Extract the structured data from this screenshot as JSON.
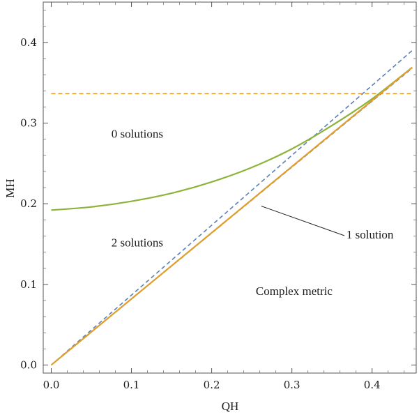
{
  "chart_data": {
    "type": "line",
    "title": "",
    "xlabel": "QH",
    "ylabel": "MH",
    "xlim": [
      -0.01,
      0.455
    ],
    "ylim": [
      -0.01,
      0.45
    ],
    "xticks": [
      "0.0",
      "0.1",
      "0.2",
      "0.3",
      "0.4"
    ],
    "yticks": [
      "0.0",
      "0.1",
      "0.2",
      "0.3",
      "0.4"
    ],
    "xtick_values": [
      0.0,
      0.1,
      0.2,
      0.3,
      0.4
    ],
    "ytick_values": [
      0.0,
      0.1,
      0.2,
      0.3,
      0.4
    ],
    "grid": false,
    "series": [
      {
        "name": "upper bound curve",
        "color": "#8db33a",
        "style": "solid",
        "x": [
          0.0,
          0.05,
          0.1,
          0.15,
          0.2,
          0.25,
          0.3,
          0.35,
          0.4,
          0.45
        ],
        "y": [
          0.192,
          0.196,
          0.203,
          0.213,
          0.227,
          0.245,
          0.268,
          0.297,
          0.33,
          0.369
        ]
      },
      {
        "name": "extremal line",
        "color": "#e09e2a",
        "style": "solid",
        "x": [
          0.0,
          0.45
        ],
        "y": [
          0.0,
          0.369
        ]
      },
      {
        "name": "horizontal asymptote",
        "color": "#e09e2a",
        "style": "dashed",
        "x": [
          0.0,
          0.45
        ],
        "y": [
          0.3365,
          0.3365
        ]
      },
      {
        "name": "dashed line steep",
        "color": "#5b7fb8",
        "style": "dashed",
        "x": [
          0.0,
          0.45
        ],
        "y": [
          0.0,
          0.39
        ]
      },
      {
        "name": "dashed line shallow",
        "color": "#5b7fb8",
        "style": "dashed",
        "x": [
          0.0,
          0.45
        ],
        "y": [
          0.0,
          0.368
        ]
      }
    ],
    "annotations": [
      {
        "text": "0 solutions",
        "x": 0.075,
        "y": 0.282
      },
      {
        "text": "2 solutions",
        "x": 0.075,
        "y": 0.147
      },
      {
        "text": "Complex metric",
        "x": 0.255,
        "y": 0.087
      },
      {
        "text": "1 solution",
        "x": 0.368,
        "y": 0.157,
        "pointer_to": [
          0.262,
          0.197
        ]
      }
    ]
  }
}
